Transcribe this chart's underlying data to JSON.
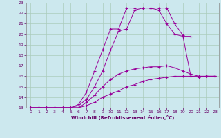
{
  "xlabel": "Windchill (Refroidissement éolien,°C)",
  "bg_color": "#cce8ee",
  "line_color": "#990099",
  "grid_color": "#aaccbb",
  "xlim": [
    -0.5,
    23.5
  ],
  "ylim": [
    13,
    23
  ],
  "yticks": [
    13,
    14,
    15,
    16,
    17,
    18,
    19,
    20,
    21,
    22,
    23
  ],
  "xticks": [
    0,
    1,
    2,
    3,
    4,
    5,
    6,
    7,
    8,
    9,
    10,
    11,
    12,
    13,
    14,
    15,
    16,
    17,
    18,
    19,
    20,
    21,
    22,
    23
  ],
  "lines": [
    {
      "x": [
        0,
        1,
        2,
        3,
        4,
        5,
        6,
        7,
        8,
        9,
        10,
        11,
        12,
        13,
        14,
        15,
        16,
        17,
        18,
        19,
        20,
        21,
        22,
        23
      ],
      "y": [
        13,
        13,
        13,
        13,
        13,
        13,
        13,
        13.2,
        13.5,
        14.0,
        14.3,
        14.6,
        15.0,
        15.2,
        15.5,
        15.7,
        15.8,
        15.9,
        16.0,
        16.0,
        16.0,
        16.0,
        16.0,
        16.0
      ]
    },
    {
      "x": [
        0,
        1,
        2,
        3,
        4,
        5,
        6,
        7,
        8,
        9,
        10,
        11,
        12,
        13,
        14,
        15,
        16,
        17,
        18,
        19,
        20,
        21,
        22,
        23
      ],
      "y": [
        13,
        13,
        13,
        13,
        13,
        13,
        13,
        13.5,
        14.2,
        15.0,
        15.7,
        16.2,
        16.5,
        16.7,
        16.8,
        16.9,
        16.9,
        17.0,
        16.8,
        16.5,
        16.2,
        16.0,
        16.0,
        16.0
      ]
    },
    {
      "x": [
        0,
        1,
        2,
        3,
        4,
        5,
        6,
        7,
        8,
        9,
        10,
        11,
        12,
        13,
        14,
        15,
        16,
        17,
        18,
        19,
        20
      ],
      "y": [
        13,
        13,
        13,
        13,
        13,
        13,
        13.3,
        14.5,
        16.5,
        18.5,
        20.5,
        20.5,
        22.5,
        22.5,
        22.5,
        22.5,
        22.3,
        21.0,
        20.0,
        19.8,
        19.8
      ]
    },
    {
      "x": [
        0,
        1,
        2,
        3,
        4,
        5,
        6,
        7,
        8,
        9,
        10,
        11,
        12,
        13,
        14,
        15,
        16,
        17,
        18,
        19,
        20,
        21,
        22,
        23
      ],
      "y": [
        13,
        13,
        13,
        13,
        13,
        13,
        13.2,
        13.8,
        15.0,
        16.5,
        18.5,
        20.3,
        20.5,
        22.3,
        22.5,
        22.5,
        22.5,
        22.5,
        21.0,
        19.9,
        16.0,
        15.9,
        16.0,
        16.0
      ]
    }
  ]
}
